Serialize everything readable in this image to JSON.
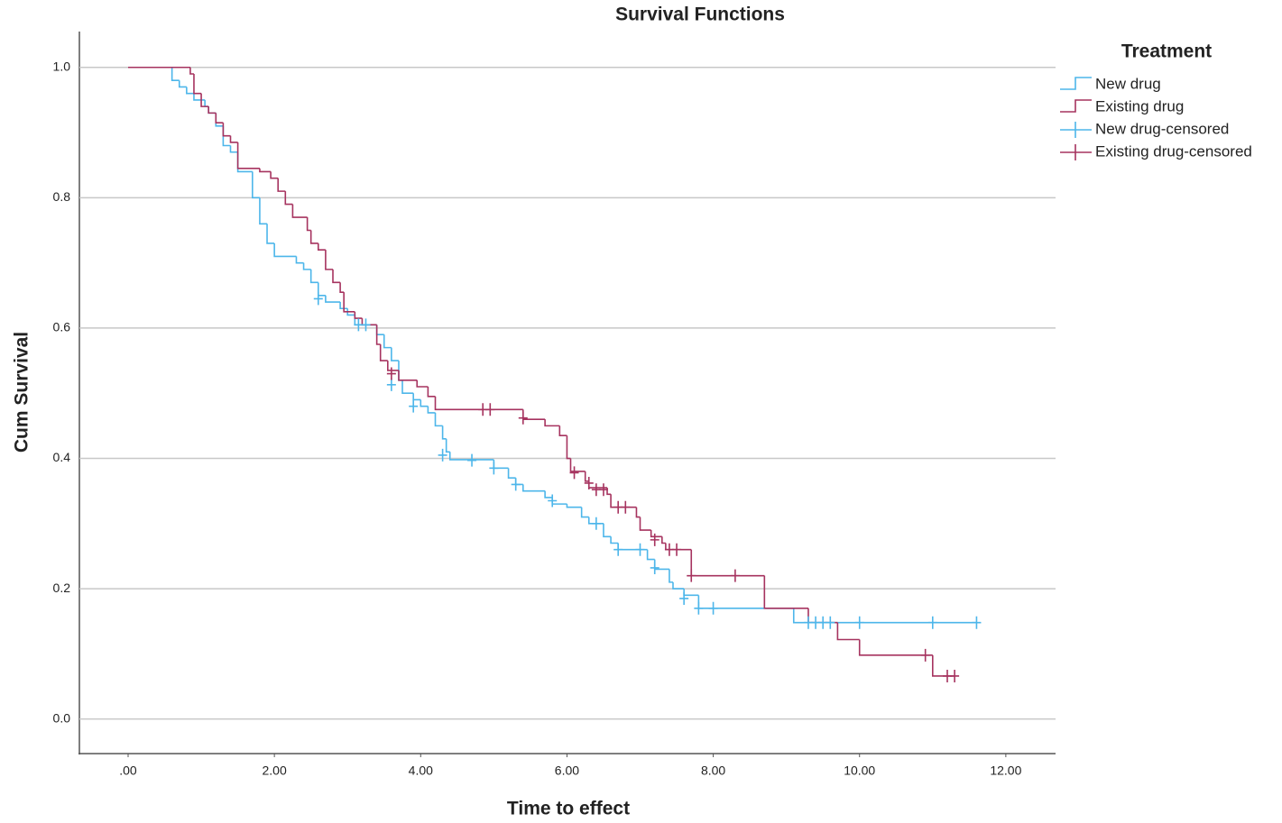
{
  "chart_data": {
    "type": "line",
    "title": "Survival Functions",
    "x_label": "Time to effect",
    "y_label": "Cum Survival",
    "legend_title": "Treatment",
    "legend_position": "right",
    "grid": true,
    "xlim": [
      -0.666,
      12.68
    ],
    "ylim": [
      -0.053,
      1.055
    ],
    "xticks": [
      {
        "value": 0,
        "label": ".00"
      },
      {
        "value": 2,
        "label": "2.00"
      },
      {
        "value": 4,
        "label": "4.00"
      },
      {
        "value": 6,
        "label": "6.00"
      },
      {
        "value": 8,
        "label": "8.00"
      },
      {
        "value": 10,
        "label": "10.00"
      },
      {
        "value": 12,
        "label": "12.00"
      }
    ],
    "yticks": [
      {
        "value": 0,
        "label": "0.0"
      },
      0.2,
      0.4,
      0.6,
      0.8,
      {
        "value": 1,
        "label": "1.0"
      }
    ],
    "series": [
      {
        "name": "New drug",
        "color": "#4db6ea",
        "step": true,
        "x": [
          0,
          0.6,
          0.7,
          0.8,
          0.9,
          1.05,
          1.1,
          1.2,
          1.3,
          1.4,
          1.5,
          1.7,
          1.8,
          1.9,
          2.0,
          2.3,
          2.4,
          2.5,
          2.6,
          2.7,
          2.9,
          3.0,
          3.1,
          3.4,
          3.5,
          3.6,
          3.7,
          3.75,
          3.9,
          4.0,
          4.1,
          4.2,
          4.3,
          4.35,
          4.4,
          5.0,
          5.2,
          5.3,
          5.4,
          5.7,
          5.8,
          6.0,
          6.2,
          6.3,
          6.5,
          6.6,
          6.7,
          7.1,
          7.2,
          7.4,
          7.45,
          7.6,
          7.8,
          9.1,
          11.6
        ],
        "values": [
          1.0,
          0.98,
          0.97,
          0.96,
          0.95,
          0.94,
          0.93,
          0.91,
          0.88,
          0.87,
          0.84,
          0.8,
          0.76,
          0.73,
          0.71,
          0.7,
          0.69,
          0.67,
          0.65,
          0.64,
          0.63,
          0.62,
          0.605,
          0.59,
          0.57,
          0.55,
          0.52,
          0.5,
          0.49,
          0.48,
          0.47,
          0.45,
          0.43,
          0.41,
          0.398,
          0.385,
          0.37,
          0.36,
          0.35,
          0.34,
          0.33,
          0.325,
          0.31,
          0.3,
          0.28,
          0.27,
          0.26,
          0.245,
          0.23,
          0.21,
          0.2,
          0.19,
          0.17,
          0.148,
          0.148
        ]
      },
      {
        "name": "Existing drug",
        "color": "#a6335f",
        "step": true,
        "x": [
          0,
          0.85,
          0.9,
          1.0,
          1.1,
          1.2,
          1.3,
          1.4,
          1.5,
          1.8,
          1.95,
          2.05,
          2.15,
          2.25,
          2.45,
          2.5,
          2.6,
          2.7,
          2.8,
          2.9,
          2.95,
          3.1,
          3.2,
          3.4,
          3.45,
          3.55,
          3.7,
          3.95,
          4.1,
          4.2,
          5.4,
          5.7,
          5.9,
          6.0,
          6.05,
          6.25,
          6.3,
          6.55,
          6.6,
          6.95,
          7.0,
          7.15,
          7.3,
          7.35,
          7.7,
          8.7,
          9.3,
          9.7,
          10.0,
          11.0,
          11.3
        ],
        "values": [
          1.0,
          0.99,
          0.96,
          0.94,
          0.93,
          0.915,
          0.895,
          0.885,
          0.845,
          0.84,
          0.83,
          0.81,
          0.79,
          0.77,
          0.75,
          0.73,
          0.72,
          0.69,
          0.67,
          0.655,
          0.625,
          0.615,
          0.605,
          0.575,
          0.55,
          0.535,
          0.52,
          0.51,
          0.495,
          0.475,
          0.46,
          0.45,
          0.435,
          0.4,
          0.38,
          0.365,
          0.355,
          0.345,
          0.325,
          0.31,
          0.29,
          0.28,
          0.27,
          0.26,
          0.22,
          0.17,
          0.148,
          0.122,
          0.098,
          0.066,
          0.066
        ]
      },
      {
        "name": "New drug-censored",
        "color": "#4db6ea",
        "marker": "+",
        "x": [
          2.6,
          3.15,
          3.25,
          3.6,
          3.9,
          4.3,
          4.7,
          5.0,
          5.3,
          5.8,
          6.4,
          6.7,
          7.0,
          7.2,
          7.6,
          7.8,
          8.0,
          9.3,
          9.4,
          9.5,
          9.6,
          10.0,
          11.0,
          11.6
        ],
        "values": [
          0.645,
          0.605,
          0.605,
          0.513,
          0.48,
          0.405,
          0.397,
          0.385,
          0.36,
          0.335,
          0.3,
          0.26,
          0.26,
          0.232,
          0.185,
          0.17,
          0.17,
          0.148,
          0.148,
          0.148,
          0.148,
          0.148,
          0.148,
          0.148
        ]
      },
      {
        "name": "Existing drug-censored",
        "color": "#a6335f",
        "marker": "+",
        "x": [
          3.6,
          4.85,
          4.95,
          5.4,
          6.1,
          6.3,
          6.4,
          6.5,
          6.7,
          6.8,
          7.2,
          7.4,
          7.5,
          7.7,
          8.3,
          10.9,
          11.2,
          11.3
        ],
        "values": [
          0.53,
          0.475,
          0.475,
          0.462,
          0.378,
          0.362,
          0.352,
          0.352,
          0.325,
          0.325,
          0.275,
          0.26,
          0.26,
          0.22,
          0.22,
          0.098,
          0.066,
          0.066
        ]
      }
    ]
  }
}
